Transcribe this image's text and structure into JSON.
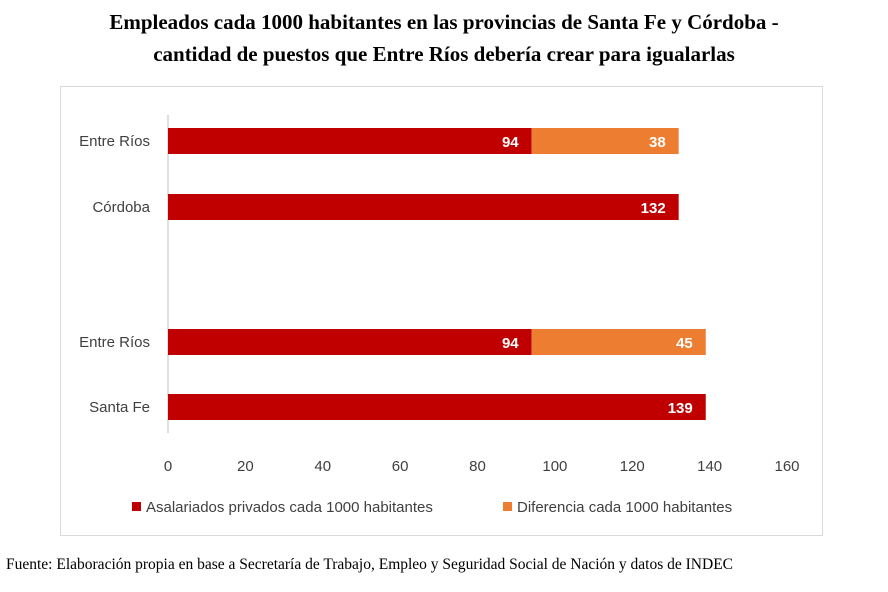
{
  "title_line1": "Empleados cada 1000 habitantes en las provincias de Santa Fe y Córdoba -",
  "title_line2": "cantidad de puestos que Entre Ríos debería crear para igualarlas",
  "source": "Fuente: Elaboración propia en base a Secretaría de Trabajo, Empleo y Seguridad Social de Nación y datos de INDEC",
  "chart_data": {
    "type": "bar",
    "orientation": "horizontal",
    "stacked": true,
    "categories": [
      "Entre Ríos",
      "Córdoba",
      "Entre Ríos",
      "Santa Fe"
    ],
    "groups": [
      {
        "categories": [
          "Entre Ríos",
          "Córdoba"
        ]
      },
      {
        "categories": [
          "Entre Ríos",
          "Santa Fe"
        ]
      }
    ],
    "series": [
      {
        "name": "Asalariados privados cada 1000 habitantes",
        "values": [
          94,
          132,
          94,
          139
        ],
        "color": "#c00000"
      },
      {
        "name": "Diferencia cada 1000 habitantes",
        "values": [
          38,
          0,
          45,
          0
        ],
        "color": "#ed7d31"
      }
    ],
    "xlim": [
      0,
      160
    ],
    "xticks": [
      0,
      20,
      40,
      60,
      80,
      100,
      120,
      140,
      160
    ],
    "grid": false,
    "legend_position": "bottom"
  }
}
